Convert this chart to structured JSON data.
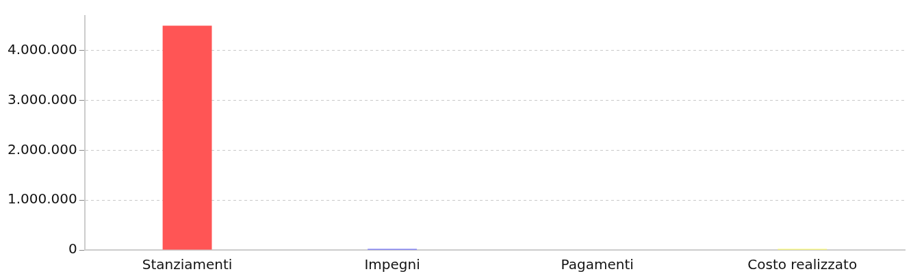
{
  "chart_data": {
    "type": "bar",
    "categories": [
      "Stanziamenti",
      "Impegni",
      "Pagamenti",
      "Costo realizzato"
    ],
    "values": [
      4500000,
      20000,
      0,
      20000
    ],
    "colors": [
      "#ff5555",
      "#5555ff",
      "#999933",
      "#ffff55"
    ],
    "ylim": [
      0,
      4700000
    ],
    "yticks": [
      {
        "value": 0,
        "label": "0"
      },
      {
        "value": 1000000,
        "label": "1.000.000"
      },
      {
        "value": 2000000,
        "label": "2.000.000"
      },
      {
        "value": 3000000,
        "label": "3.000.000"
      },
      {
        "value": 4000000,
        "label": "4.000.000"
      }
    ],
    "grid": "y",
    "line_style": "dashed",
    "legend": false
  }
}
